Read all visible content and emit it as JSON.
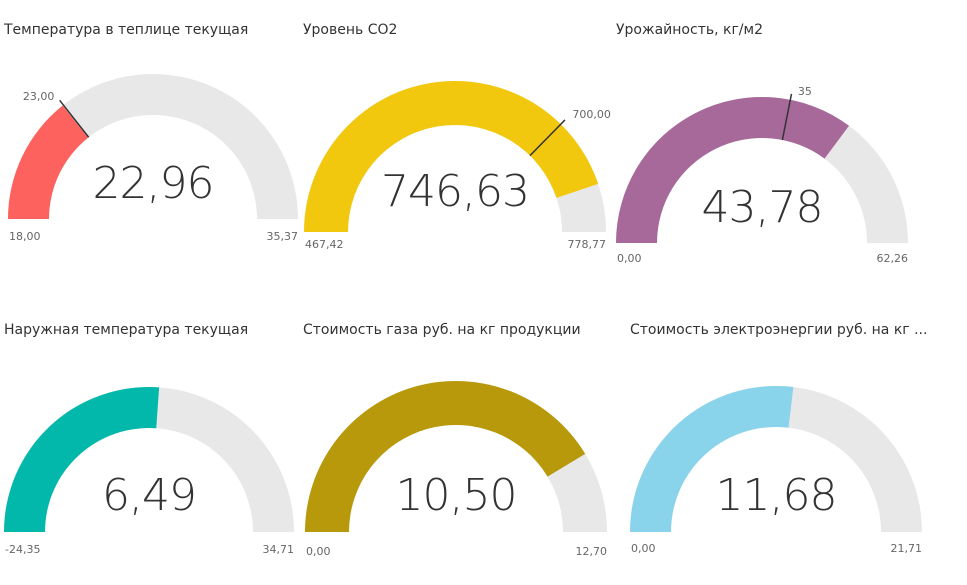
{
  "chart_data": [
    {
      "type": "gauge",
      "title": "Температура в теплице текущая",
      "value": 22.96,
      "value_label": "22,96",
      "min": 18.0,
      "min_label": "18,00",
      "max": 35.37,
      "max_label": "35,37",
      "target": 23.0,
      "target_label": "23,00",
      "color": "#FD625E"
    },
    {
      "type": "gauge",
      "title": "Уровень CO2",
      "value": 746.63,
      "value_label": "746,63",
      "min": 467.42,
      "min_label": "467,42",
      "max": 778.77,
      "max_label": "778,77",
      "target": 700.0,
      "target_label": "700,00",
      "color": "#F2C80F"
    },
    {
      "type": "gauge",
      "title": "Урожайность, кг/м2",
      "value": 43.78,
      "value_label": "43,78",
      "min": 0.0,
      "min_label": "0,00",
      "max": 62.26,
      "max_label": "62,26",
      "target": 35,
      "target_label": "35",
      "color": "#A66999"
    },
    {
      "type": "gauge",
      "title": "Наружная температура текущая",
      "value": 6.49,
      "value_label": "6,49",
      "min": -24.35,
      "min_label": "-24,35",
      "max": 34.71,
      "max_label": "34,71",
      "color": "#01B8AA"
    },
    {
      "type": "gauge",
      "title": "Стоимость газа руб. на кг продукции",
      "value": 10.5,
      "value_label": "10,50",
      "min": 0.0,
      "min_label": "0,00",
      "max": 12.7,
      "max_label": "12,70",
      "color": "#B8990B"
    },
    {
      "type": "gauge",
      "title": "Стоимость электроэнергии руб. на кг ...",
      "value": 11.68,
      "value_label": "11,68",
      "min": 0.0,
      "min_label": "0,00",
      "max": 21.71,
      "max_label": "21,71",
      "color": "#8AD4EB"
    }
  ],
  "style": {
    "track_color": "#E8E8E8",
    "target_color": "#333333"
  }
}
